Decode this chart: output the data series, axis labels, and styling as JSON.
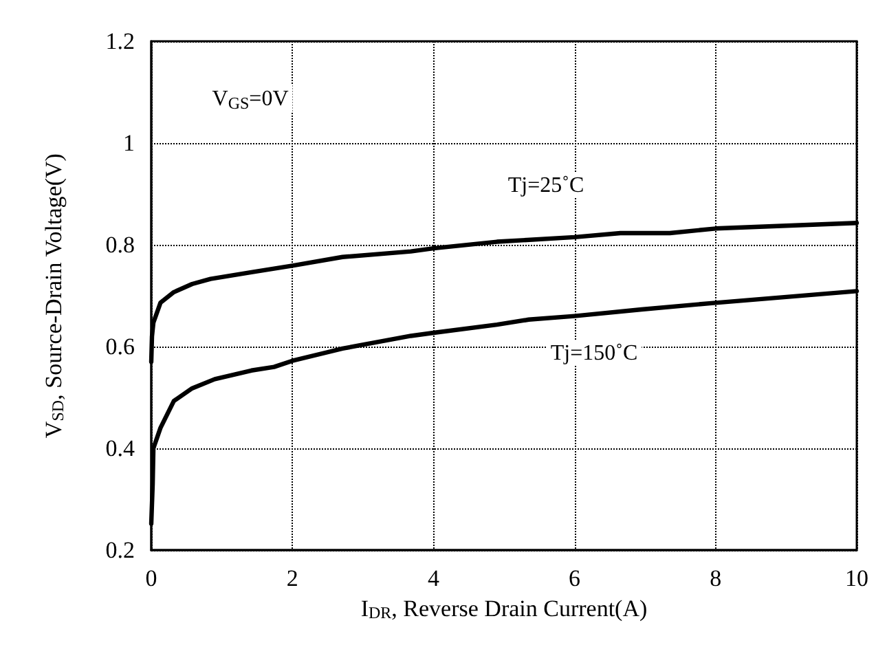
{
  "chart_data": {
    "type": "line",
    "xlabel": "I$_{DR}$, Reverse Drain Current(A)",
    "ylabel": "V$_{SD}$, Source-Drain Voltage(V)",
    "xlim": [
      0,
      10
    ],
    "xticks": [
      0,
      2,
      4,
      6,
      8,
      10
    ],
    "ylim": [
      0.2,
      1.2
    ],
    "yticks": [
      0.2,
      0.4,
      0.6,
      0.8,
      1,
      1.2
    ],
    "grid": true,
    "marker": "none",
    "line_style": "solid",
    "series": [
      {
        "color": "#000000",
        "x": [
          0,
          0.01,
          0.03,
          0.13,
          0.32,
          0.58,
          0.84,
          1.42,
          2,
          2.71,
          3.68,
          4,
          4.9,
          6,
          6.65,
          7.35,
          8,
          10
        ],
        "values": [
          0.57,
          0.62,
          0.647,
          0.686,
          0.707,
          0.723,
          0.733,
          0.746,
          0.759,
          0.776,
          0.787,
          0.793,
          0.806,
          0.815,
          0.823,
          0.823,
          0.832,
          0.843
        ]
      },
      {
        "color": "#000000",
        "x": [
          0,
          0.02,
          0.03,
          0.13,
          0.32,
          0.58,
          0.9,
          1.42,
          1.74,
          2,
          2.71,
          3.68,
          4,
          4.9,
          5.35,
          6,
          6.95,
          8,
          10
        ],
        "values": [
          0.252,
          0.33,
          0.4,
          0.44,
          0.493,
          0.518,
          0.536,
          0.553,
          0.56,
          0.572,
          0.596,
          0.621,
          0.627,
          0.643,
          0.653,
          0.66,
          0.673,
          0.686,
          0.709
        ]
      }
    ],
    "annotations": [
      "V$_{GS}$=0V",
      "Tj=25˚C",
      "Tj=150˚C"
    ]
  }
}
